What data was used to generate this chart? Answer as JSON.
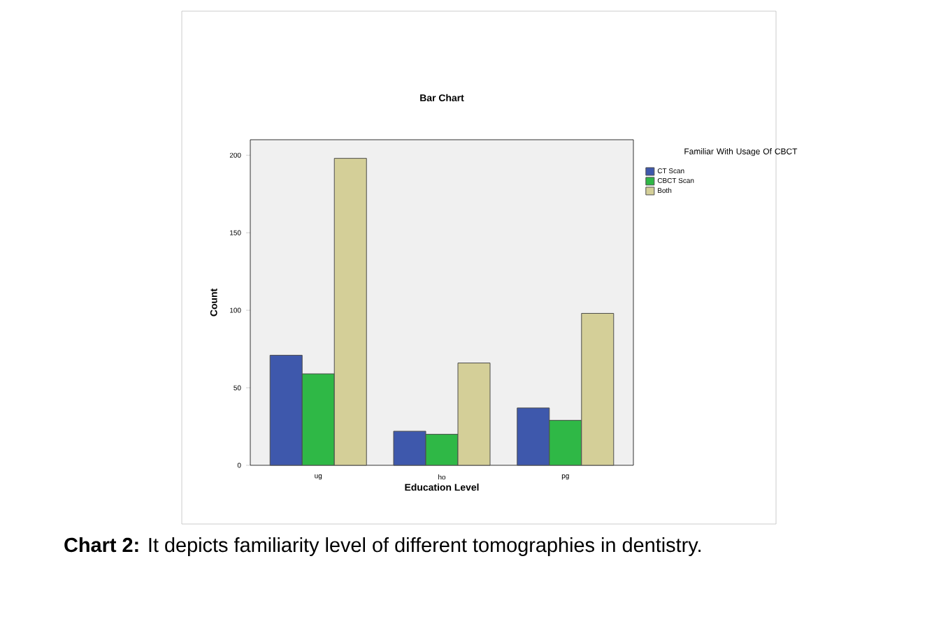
{
  "chart_data": {
    "type": "bar",
    "title": "Bar Chart",
    "xlabel": "Education Level",
    "ylabel": "Count",
    "legend_title": "Familiar With Usage Of CBCT",
    "categories": [
      "ug",
      "ho",
      "pg"
    ],
    "series": [
      {
        "name": "CT Scan",
        "color": "#3e58ac",
        "values": [
          71,
          22,
          37
        ]
      },
      {
        "name": "CBCT Scan",
        "color": "#2fb846",
        "values": [
          59,
          20,
          29
        ]
      },
      {
        "name": "Both",
        "color": "#d4cf98",
        "values": [
          198,
          66,
          98
        ]
      }
    ],
    "ylim": [
      0,
      210
    ],
    "yticks": [
      0,
      50,
      100,
      150,
      200
    ],
    "grid": false,
    "legend": "top right",
    "annotations": [
      "**Chart 2:** It depicts familiarity level of different tomographies in dentistry."
    ]
  }
}
